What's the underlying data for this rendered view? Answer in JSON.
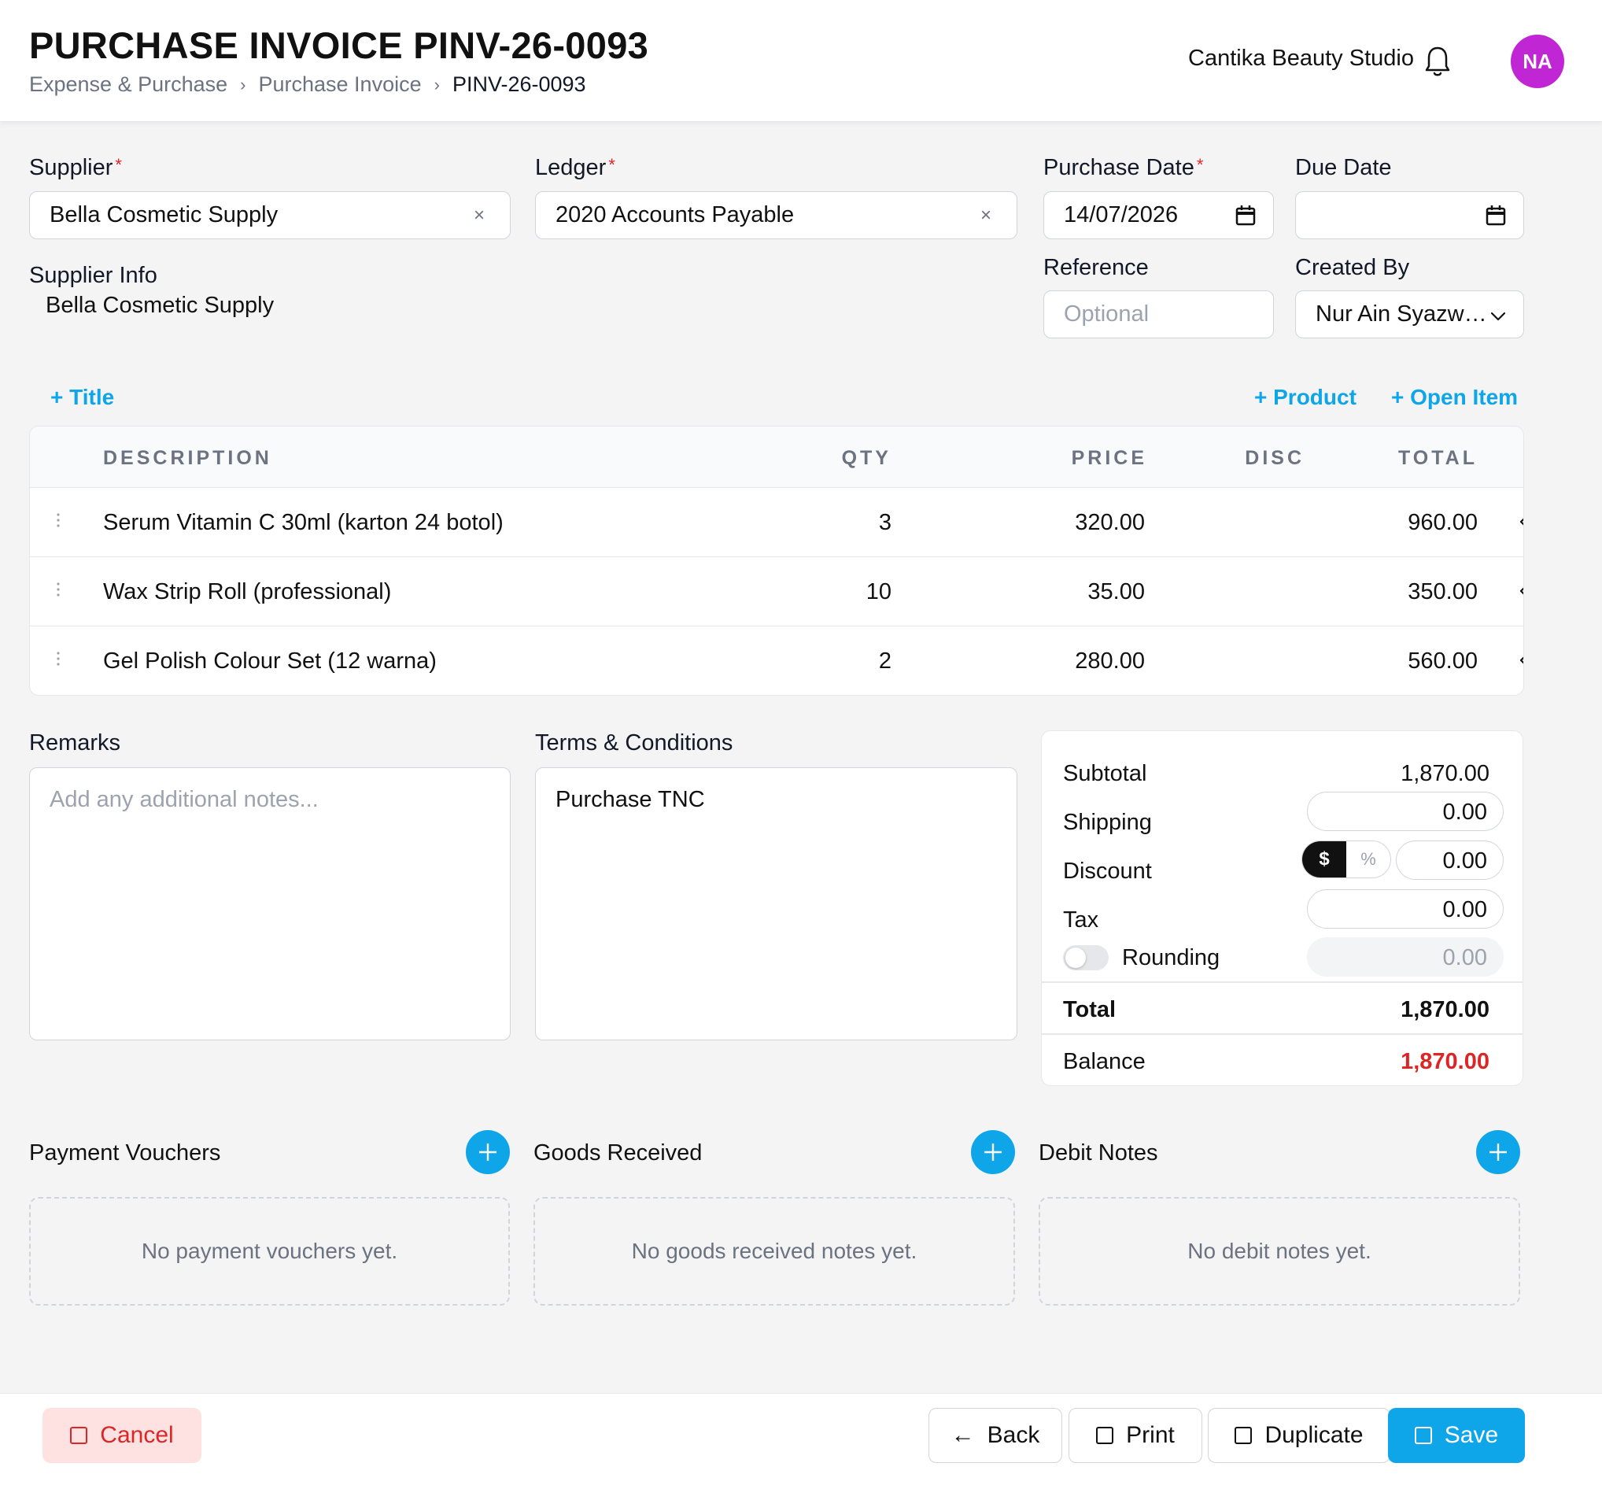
{
  "header": {
    "title": "PURCHASE INVOICE PINV-26-0093",
    "breadcrumb": [
      "Expense & Purchase",
      "Purchase Invoice",
      "PINV-26-0093"
    ],
    "breadcrumb_sep": "›",
    "company": "Cantika Beauty Studio",
    "avatar_initials": "NA",
    "avatar_color": "#c026d3",
    "bell_icon": "bell-icon"
  },
  "form": {
    "supplier_label": "Supplier",
    "supplier_value": "Bella Cosmetic Supply",
    "ledger_label": "Ledger",
    "ledger_value": "2020 Accounts Payable",
    "purchase_date_label": "Purchase Date",
    "purchase_date_value": "14/07/2026",
    "due_date_label": "Due Date",
    "due_date_value": "",
    "reference_label": "Reference",
    "reference_placeholder": "Optional",
    "created_by_label": "Created By",
    "created_by_value": "Nur Ain Syazw…",
    "supplier_info_label": "Supplier Info",
    "supplier_info_value": "Bella Cosmetic Supply",
    "required_mark": "*",
    "clear_glyph": "×"
  },
  "items": {
    "add_title": "+ Title",
    "add_product": "+ Product",
    "add_open_item": "+ Open Item",
    "columns": [
      "DESCRIPTION",
      "QTY",
      "PRICE",
      "DISC",
      "TOTAL"
    ],
    "rows": [
      {
        "description": "Serum Vitamin C 30ml (karton 24 botol)",
        "qty": "3",
        "price": "320.00",
        "disc": "",
        "total": "960.00"
      },
      {
        "description": "Wax Strip Roll (professional)",
        "qty": "10",
        "price": "35.00",
        "disc": "",
        "total": "350.00"
      },
      {
        "description": "Gel Polish Colour Set (12 warna)",
        "qty": "2",
        "price": "280.00",
        "disc": "",
        "total": "560.00"
      }
    ]
  },
  "notes": {
    "remarks_label": "Remarks",
    "remarks_placeholder": "Add any additional notes...",
    "terms_label": "Terms & Conditions",
    "terms_value": "Purchase TNC"
  },
  "summary": {
    "subtotal_label": "Subtotal",
    "subtotal_value": "1,870.00",
    "shipping_label": "Shipping",
    "shipping_value": "0.00",
    "discount_label": "Discount",
    "discount_mode_amount": "$",
    "discount_mode_percent": "%",
    "discount_value": "0.00",
    "tax_label": "Tax",
    "tax_value": "0.00",
    "rounding_label": "Rounding",
    "rounding_value": "0.00",
    "rounding_enabled": false,
    "total_label": "Total",
    "total_value": "1,870.00",
    "balance_label": "Balance",
    "balance_value": "1,870.00",
    "balance_color": "#dc2626"
  },
  "related": {
    "payment_vouchers_title": "Payment Vouchers",
    "payment_vouchers_empty": "No payment vouchers yet.",
    "goods_received_title": "Goods Received",
    "goods_received_empty": "No goods received notes yet.",
    "debit_notes_title": "Debit Notes",
    "debit_notes_empty": "No debit notes yet."
  },
  "footer": {
    "cancel": "Cancel",
    "back": "Back",
    "print": "Print",
    "duplicate": "Duplicate",
    "save": "Save",
    "back_arrow": "←"
  },
  "colors": {
    "accent": "#0ea5e9",
    "danger": "#dc2626",
    "cancel_bg": "#fee2e2"
  }
}
